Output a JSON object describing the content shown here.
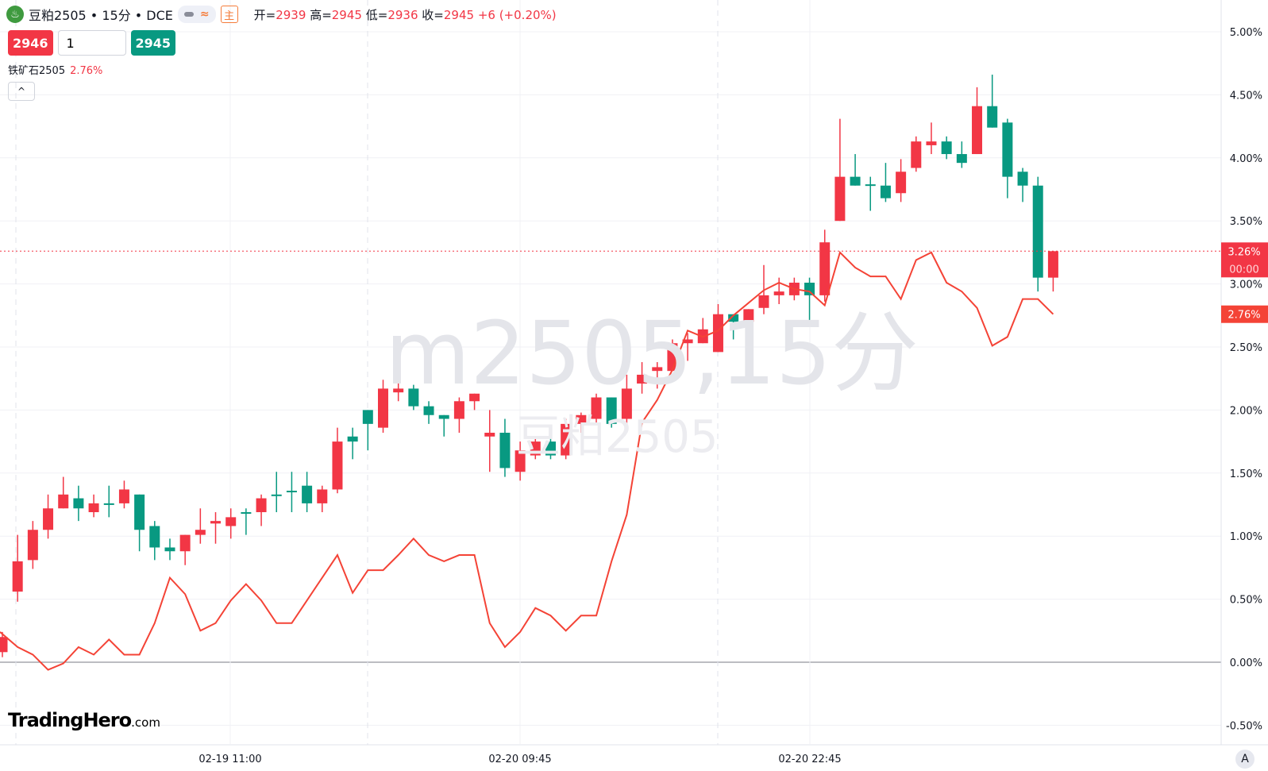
{
  "header": {
    "symbol_title": "豆粕2505 • 15分 • DCE",
    "logo_icon": "soybean-leaf-icon",
    "main_tag": "主",
    "ohlc": {
      "open_label": "开=",
      "open": "2939",
      "high_label": "高=",
      "high": "2945",
      "low_label": "低=",
      "low": "2936",
      "close_label": "收=",
      "close": "2945",
      "change": "+6 (+0.20%)"
    }
  },
  "trade": {
    "sell_price": "2946",
    "quantity": "1",
    "buy_price": "2945"
  },
  "compare": {
    "symbol": "铁矿石2505",
    "value": "2.76%"
  },
  "collapse_icon": "chevron-up-icon",
  "collapse_glyph": "^",
  "watermark": {
    "main": "m2505,15分",
    "sub": "豆粕2505"
  },
  "brand": {
    "name": "TradingHero",
    "suffix": ".com"
  },
  "axis_auto_label": "A",
  "colors": {
    "up": "#f23645",
    "down": "#089981",
    "compare_line": "#f44336",
    "grid": "#f0f1f5"
  },
  "chart_data": {
    "type": "candlestick",
    "y_unit": "percent",
    "ylim": [
      -0.6,
      5.2
    ],
    "y_ticks": [
      "5.00%",
      "4.50%",
      "4.00%",
      "3.50%",
      "3.00%",
      "2.50%",
      "2.00%",
      "1.50%",
      "1.00%",
      "0.50%",
      "0.00%",
      "-0.50%"
    ],
    "x_ticks": [
      "02-19 11:00",
      "02-20 09:45",
      "02-20 22:45"
    ],
    "grid": true,
    "last_price_label": "3.26%",
    "countdown_label": "00:00",
    "compare_label": "2.76%",
    "candles_ohlc": [
      [
        0.08,
        0.24,
        0.04,
        0.2
      ],
      [
        0.56,
        1.01,
        0.48,
        0.8
      ],
      [
        0.81,
        1.12,
        0.74,
        1.05
      ],
      [
        1.05,
        1.33,
        0.98,
        1.22
      ],
      [
        1.22,
        1.47,
        1.22,
        1.33
      ],
      [
        1.3,
        1.4,
        1.12,
        1.22
      ],
      [
        1.19,
        1.33,
        1.15,
        1.26
      ],
      [
        1.26,
        1.4,
        1.15,
        1.25
      ],
      [
        1.26,
        1.44,
        1.22,
        1.37
      ],
      [
        1.33,
        1.33,
        0.88,
        1.05
      ],
      [
        1.08,
        1.12,
        0.81,
        0.91
      ],
      [
        0.91,
        0.98,
        0.81,
        0.88
      ],
      [
        0.88,
        1.01,
        0.77,
        1.01
      ],
      [
        1.01,
        1.22,
        0.94,
        1.05
      ],
      [
        1.1,
        1.19,
        0.94,
        1.12
      ],
      [
        1.08,
        1.22,
        0.98,
        1.15
      ],
      [
        1.19,
        1.22,
        1.01,
        1.18
      ],
      [
        1.19,
        1.33,
        1.08,
        1.3
      ],
      [
        1.33,
        1.51,
        1.19,
        1.32
      ],
      [
        1.36,
        1.51,
        1.19,
        1.35
      ],
      [
        1.4,
        1.51,
        1.19,
        1.26
      ],
      [
        1.26,
        1.4,
        1.19,
        1.37
      ],
      [
        1.37,
        1.86,
        1.34,
        1.75
      ],
      [
        1.79,
        1.86,
        1.61,
        1.75
      ],
      [
        2.0,
        2.0,
        1.68,
        1.89
      ],
      [
        1.86,
        2.24,
        1.82,
        2.17
      ],
      [
        2.14,
        2.28,
        2.07,
        2.17
      ],
      [
        2.17,
        2.2,
        2.0,
        2.03
      ],
      [
        2.03,
        2.07,
        1.89,
        1.96
      ],
      [
        1.96,
        1.96,
        1.79,
        1.93
      ],
      [
        1.93,
        2.1,
        1.82,
        2.07
      ],
      [
        2.07,
        2.13,
        2.0,
        2.13
      ],
      [
        1.79,
        2.0,
        1.51,
        1.82
      ],
      [
        1.82,
        1.93,
        1.47,
        1.54
      ],
      [
        1.51,
        1.75,
        1.44,
        1.68
      ],
      [
        1.64,
        1.77,
        1.61,
        1.75
      ],
      [
        1.75,
        1.86,
        1.61,
        1.64
      ],
      [
        1.64,
        1.93,
        1.61,
        1.89
      ],
      [
        1.89,
        1.98,
        1.82,
        1.96
      ],
      [
        1.93,
        2.13,
        1.89,
        2.1
      ],
      [
        2.1,
        2.1,
        1.86,
        1.89
      ],
      [
        1.93,
        2.28,
        1.86,
        2.17
      ],
      [
        2.21,
        2.38,
        2.13,
        2.28
      ],
      [
        2.31,
        2.38,
        2.17,
        2.34
      ],
      [
        2.31,
        2.56,
        2.31,
        2.53
      ],
      [
        2.53,
        2.61,
        2.39,
        2.56
      ],
      [
        2.53,
        2.73,
        2.53,
        2.64
      ],
      [
        2.46,
        2.84,
        2.46,
        2.76
      ],
      [
        2.76,
        2.76,
        2.56,
        2.7
      ],
      [
        2.7,
        2.8,
        2.66,
        2.8
      ],
      [
        2.81,
        3.15,
        2.76,
        2.91
      ],
      [
        2.91,
        3.05,
        2.84,
        2.94
      ],
      [
        2.91,
        3.05,
        2.87,
        3.01
      ],
      [
        3.01,
        3.05,
        2.7,
        2.91
      ],
      [
        2.91,
        3.43,
        2.86,
        3.33
      ],
      [
        3.5,
        4.31,
        3.5,
        3.85
      ],
      [
        3.85,
        4.03,
        3.78,
        3.78
      ],
      [
        3.79,
        3.85,
        3.58,
        3.78
      ],
      [
        3.78,
        3.96,
        3.65,
        3.68
      ],
      [
        3.72,
        3.99,
        3.65,
        3.89
      ],
      [
        3.92,
        4.17,
        3.89,
        4.13
      ],
      [
        4.1,
        4.28,
        4.03,
        4.13
      ],
      [
        4.13,
        4.17,
        3.99,
        4.03
      ],
      [
        4.03,
        4.13,
        3.92,
        3.96
      ],
      [
        4.03,
        4.56,
        4.03,
        4.41
      ],
      [
        4.41,
        4.66,
        4.24,
        4.24
      ],
      [
        4.28,
        4.31,
        3.68,
        3.85
      ],
      [
        3.89,
        3.92,
        3.65,
        3.78
      ],
      [
        3.78,
        3.85,
        2.94,
        3.05
      ],
      [
        3.05,
        3.26,
        2.94,
        3.26
      ]
    ],
    "compare_series": {
      "name": "铁矿石2505",
      "values": [
        0.24,
        0.12,
        0.06,
        -0.06,
        -0.01,
        0.12,
        0.06,
        0.18,
        0.06,
        0.06,
        0.31,
        0.67,
        0.54,
        0.25,
        0.31,
        0.49,
        0.62,
        0.49,
        0.31,
        0.31,
        0.49,
        0.67,
        0.85,
        0.55,
        0.73,
        0.73,
        0.85,
        0.98,
        0.85,
        0.8,
        0.85,
        0.85,
        0.31,
        0.12,
        0.24,
        0.43,
        0.37,
        0.25,
        0.37,
        0.37,
        0.8,
        1.17,
        1.9,
        2.08,
        2.32,
        2.63,
        2.58,
        2.63,
        2.75,
        2.85,
        2.95,
        3.01,
        2.96,
        2.94,
        2.83,
        3.25,
        3.13,
        3.06,
        3.06,
        2.88,
        3.19,
        3.25,
        3.01,
        2.94,
        2.81,
        2.51,
        2.58,
        2.88,
        2.88,
        2.76
      ]
    }
  }
}
